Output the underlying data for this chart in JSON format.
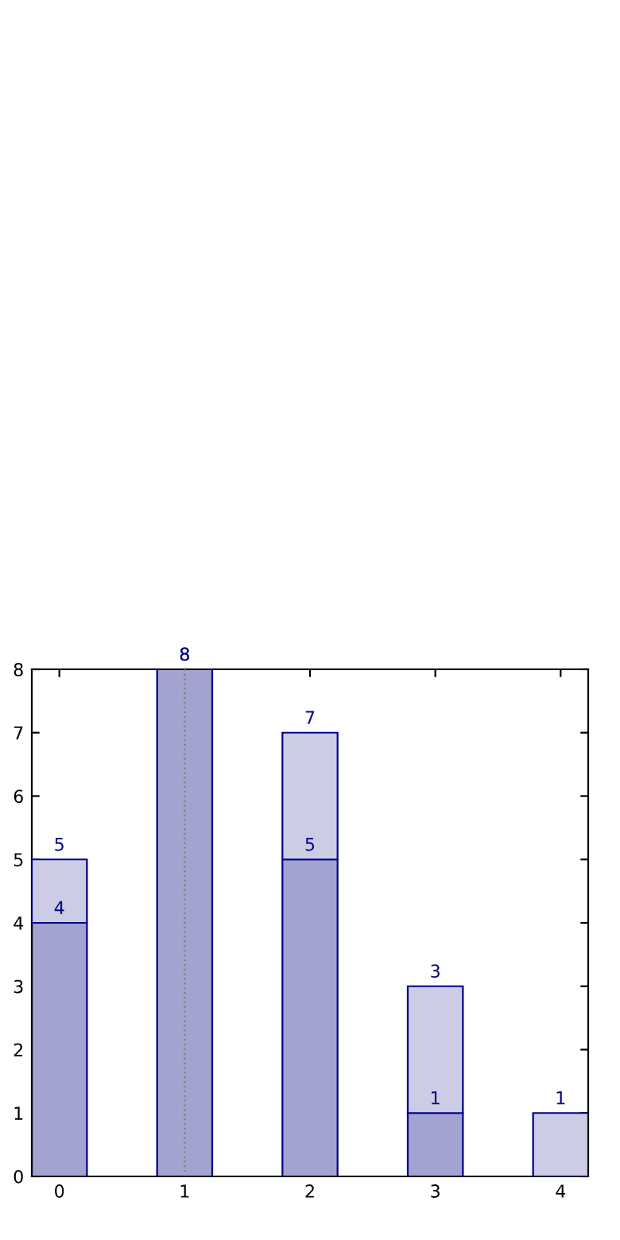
{
  "chart_data": {
    "type": "bar",
    "x": [
      0,
      1,
      2,
      3,
      4
    ],
    "stacked": true,
    "series": [
      {
        "color": "#a3a3d1",
        "values": [
          4,
          8,
          5,
          1,
          null
        ],
        "value_labels": [
          "4",
          "8",
          "5",
          "1",
          null
        ]
      },
      {
        "color": "#ccccE5",
        "values": [
          1,
          null,
          2,
          2,
          1
        ]
      }
    ],
    "totals": [
      "5",
      "8",
      "7",
      "3",
      "1"
    ],
    "xlim": [
      -0.22,
      4.22
    ],
    "ylim": [
      0,
      8
    ],
    "xticks": [
      0,
      1,
      2,
      3,
      4
    ],
    "yticks": [
      0,
      1,
      2,
      3,
      4,
      5,
      6,
      7,
      8
    ],
    "ref_lines": [
      {
        "axis": "x",
        "value": 1,
        "label": null,
        "color": "#808080",
        "line_style": "dotted"
      }
    ],
    "grid": false,
    "legend": false
  }
}
